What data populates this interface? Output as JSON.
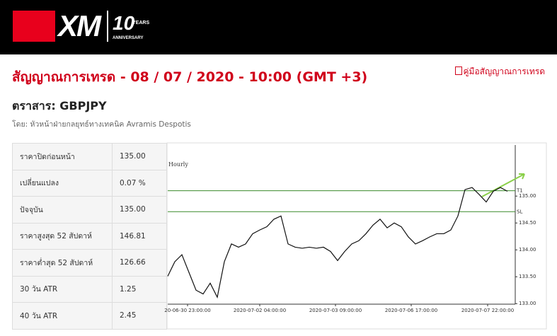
{
  "header": {
    "logo": "XM",
    "anniversary_number": "10",
    "anniversary_years": "YEARS",
    "anniversary_label": "ANNIVERSARY"
  },
  "title": "สัญญาณการเทรด - 08 / 07 / 2020 - 10:00 (GMT +3)",
  "guide_link": "คู่มือสัญญาณการเทรด",
  "instrument": "ตราสาร: GBPJPY",
  "author": "โดย: หัวหน้าฝ่ายกลยุทธ์ทางเทคนิค Avramis Despotis",
  "table": {
    "rows": [
      [
        "ราคาปิดก่อนหน้า",
        "135.00"
      ],
      [
        "เปลี่ยนแปลง",
        "0.07 %"
      ],
      [
        "ปัจจุบัน",
        "135.00"
      ],
      [
        "ราคาสูงสุด 52 สัปดาห์",
        "146.81"
      ],
      [
        "ราคาต่ำสุด 52 สัปดาห์",
        "126.66"
      ],
      [
        "30 วัน ATR",
        "1.25"
      ],
      [
        "40 วัน ATR",
        "2.45"
      ]
    ]
  },
  "chart_data": {
    "type": "line",
    "subtitle": "Hourly",
    "color": "#111111",
    "x": [
      0,
      1,
      2,
      3,
      4,
      5,
      6,
      7,
      8,
      9,
      10,
      11,
      12,
      13,
      14,
      15,
      16,
      17,
      18,
      19,
      20,
      21,
      22,
      23,
      24,
      25,
      26,
      27,
      28,
      29,
      30,
      31,
      32,
      33,
      34,
      35,
      36,
      37,
      38,
      39,
      40,
      41,
      42,
      43,
      44,
      45,
      46,
      47,
      48
    ],
    "values": [
      133.51,
      133.78,
      133.91,
      133.58,
      133.25,
      133.18,
      133.38,
      133.12,
      133.78,
      134.11,
      134.05,
      134.11,
      134.3,
      134.37,
      134.43,
      134.57,
      134.63,
      134.11,
      134.05,
      134.03,
      134.05,
      134.03,
      134.05,
      133.97,
      133.8,
      133.97,
      134.11,
      134.17,
      134.3,
      134.46,
      134.57,
      134.41,
      134.5,
      134.43,
      134.24,
      134.11,
      134.17,
      134.24,
      134.3,
      134.3,
      134.37,
      134.63,
      135.12,
      135.16,
      135.03,
      134.89,
      135.09,
      135.16,
      135.09
    ],
    "xlim": [
      0,
      48
    ],
    "xticks": [
      {
        "value": 2.8,
        "label": "20-06-30 23:00:00"
      },
      {
        "value": 13,
        "label": "2020-07-02 04:00:00"
      },
      {
        "value": 23.7,
        "label": "2020-07-03 09:00:00"
      },
      {
        "value": 34.4,
        "label": "2020-07-06 17:00:00"
      },
      {
        "value": 45.2,
        "label": "2020-07-07 22:00:00"
      }
    ],
    "ylim": [
      132.99,
      135.95
    ],
    "yticks": [
      {
        "value": 133,
        "label": "133.00"
      },
      {
        "value": 133.5,
        "label": "133.50"
      },
      {
        "value": 134,
        "label": "134.00"
      },
      {
        "value": 134.5,
        "label": "134.50"
      },
      {
        "value": 135,
        "label": "135.00"
      }
    ],
    "levels": [
      {
        "label": "T1",
        "value": 135.1,
        "color": "#3a8a2a"
      },
      {
        "label": "SL",
        "value": 134.71,
        "color": "#3a8a2a"
      }
    ]
  }
}
